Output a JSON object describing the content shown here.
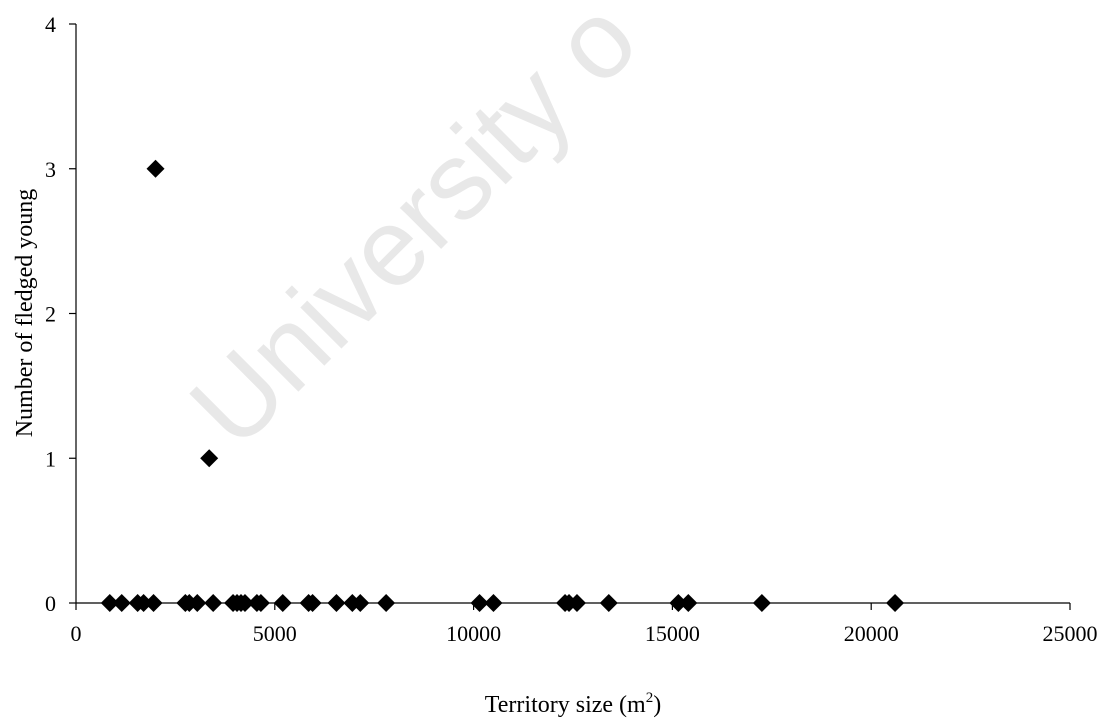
{
  "watermark": "University o",
  "chart_data": {
    "type": "scatter",
    "xlabel_main": "Territory size (m",
    "xlabel_sup": "2",
    "xlabel_end": ")",
    "ylabel": "Number of fledged young",
    "xlim": [
      0,
      25000
    ],
    "ylim": [
      0,
      4
    ],
    "xticks": [
      0,
      5000,
      10000,
      15000,
      20000,
      25000
    ],
    "yticks": [
      0,
      1,
      2,
      3,
      4
    ],
    "marker": "diamond",
    "marker_color": "#000000",
    "series": [
      {
        "points": [
          {
            "x": 2000,
            "y": 3
          },
          {
            "x": 3350,
            "y": 1
          },
          {
            "x": 850,
            "y": 0
          },
          {
            "x": 1150,
            "y": 0
          },
          {
            "x": 1550,
            "y": 0
          },
          {
            "x": 1700,
            "y": 0
          },
          {
            "x": 1950,
            "y": 0
          },
          {
            "x": 2750,
            "y": 0
          },
          {
            "x": 2850,
            "y": 0
          },
          {
            "x": 3050,
            "y": 0
          },
          {
            "x": 3450,
            "y": 0
          },
          {
            "x": 3950,
            "y": 0
          },
          {
            "x": 4050,
            "y": 0
          },
          {
            "x": 4150,
            "y": 0
          },
          {
            "x": 4250,
            "y": 0
          },
          {
            "x": 4550,
            "y": 0
          },
          {
            "x": 4650,
            "y": 0
          },
          {
            "x": 5200,
            "y": 0
          },
          {
            "x": 5850,
            "y": 0
          },
          {
            "x": 5950,
            "y": 0
          },
          {
            "x": 6550,
            "y": 0
          },
          {
            "x": 6950,
            "y": 0
          },
          {
            "x": 7150,
            "y": 0
          },
          {
            "x": 7800,
            "y": 0
          },
          {
            "x": 10150,
            "y": 0
          },
          {
            "x": 10500,
            "y": 0
          },
          {
            "x": 12300,
            "y": 0
          },
          {
            "x": 12400,
            "y": 0
          },
          {
            "x": 12600,
            "y": 0
          },
          {
            "x": 13400,
            "y": 0
          },
          {
            "x": 15150,
            "y": 0
          },
          {
            "x": 15400,
            "y": 0
          },
          {
            "x": 17250,
            "y": 0
          },
          {
            "x": 20600,
            "y": 0
          }
        ]
      }
    ]
  }
}
